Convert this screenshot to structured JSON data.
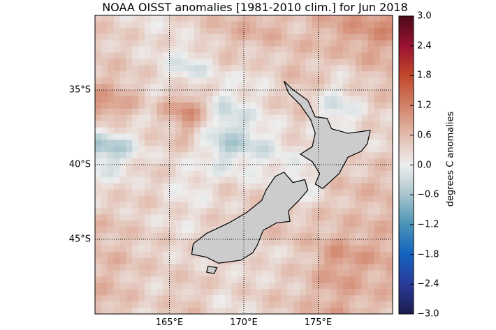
{
  "title": "NOAA OISST anomalies [1981-2010 clim.] for Jun 2018",
  "chart_data": {
    "type": "heatmap",
    "title": "NOAA OISST anomalies [1981-2010 clim.] for Jun 2018",
    "lon_range": [
      160,
      180
    ],
    "lat_range": [
      -50,
      -30
    ],
    "x_ticks": [
      {
        "value": 165,
        "label": "165°E"
      },
      {
        "value": 170,
        "label": "170°E"
      },
      {
        "value": 175,
        "label": "175°E"
      }
    ],
    "y_ticks": [
      {
        "value": -35,
        "label": "35°S"
      },
      {
        "value": -40,
        "label": "40°S"
      },
      {
        "value": -45,
        "label": "45°S"
      }
    ],
    "grid": true,
    "colorbar": {
      "label": "degrees C anomalies",
      "range": [
        -3.0,
        3.0
      ],
      "ticks": [
        "3.0",
        "2.4",
        "1.8",
        "1.2",
        "0.6",
        "0.0",
        "−0.6",
        "−1.2",
        "−1.8",
        "−2.4",
        "−3.0"
      ],
      "stops": [
        {
          "v": -3.0,
          "c": "#1b1b4e"
        },
        {
          "v": -2.4,
          "c": "#2a3a98"
        },
        {
          "v": -1.8,
          "c": "#1462c0"
        },
        {
          "v": -1.2,
          "c": "#4a94b6"
        },
        {
          "v": -0.6,
          "c": "#a9c5cd"
        },
        {
          "v": 0.0,
          "c": "#eeeeee"
        },
        {
          "v": 0.6,
          "c": "#e2bcae"
        },
        {
          "v": 1.2,
          "c": "#d18268"
        },
        {
          "v": 1.8,
          "c": "#c0482a"
        },
        {
          "v": 2.4,
          "c": "#9a1232"
        },
        {
          "v": 3.0,
          "c": "#4a0a18"
        }
      ]
    },
    "approx_anomaly_grid_note": "rows 30S to 50S in 2.5 deg steps, cols 160E to 180E",
    "anomaly_grid": [
      [
        0.4,
        0.2,
        0.3,
        0.6,
        0.7,
        0.5,
        0.8,
        1.0
      ],
      [
        0.5,
        0.3,
        -0.3,
        0.3,
        0.2,
        0.6,
        0.3,
        0.6
      ],
      [
        1.0,
        0.3,
        1.2,
        -0.3,
        0.2,
        0.5,
        -0.3,
        0.4
      ],
      [
        -0.6,
        0.3,
        0.4,
        -0.5,
        -0.2,
        0.3,
        0.2,
        0.3
      ],
      [
        0.2,
        0.4,
        0.0,
        0.3,
        0.2,
        -0.2,
        0.5,
        0.6
      ],
      [
        0.5,
        0.3,
        0.2,
        0.4,
        0.6,
        0.5,
        0.5,
        0.6
      ],
      [
        0.6,
        0.4,
        0.3,
        0.4,
        0.2,
        0.4,
        1.0,
        0.8
      ],
      [
        0.6,
        0.3,
        0.5,
        0.2,
        0.4,
        0.5,
        0.8,
        0.6
      ]
    ],
    "land_color": "#cccccc",
    "land": [
      {
        "name": "North Island",
        "coords": [
          [
            172.7,
            -34.4
          ],
          [
            173.2,
            -34.9
          ],
          [
            174.3,
            -35.7
          ],
          [
            174.8,
            -36.8
          ],
          [
            175.6,
            -36.9
          ],
          [
            175.9,
            -37.6
          ],
          [
            177.0,
            -37.9
          ],
          [
            178.5,
            -37.7
          ],
          [
            178.3,
            -38.6
          ],
          [
            177.9,
            -39.1
          ],
          [
            177.0,
            -39.5
          ],
          [
            176.4,
            -40.6
          ],
          [
            175.3,
            -41.6
          ],
          [
            174.8,
            -41.3
          ],
          [
            175.1,
            -40.6
          ],
          [
            174.6,
            -39.8
          ],
          [
            173.8,
            -39.3
          ],
          [
            174.6,
            -38.8
          ],
          [
            174.8,
            -37.9
          ],
          [
            174.5,
            -37.0
          ],
          [
            173.8,
            -36.0
          ],
          [
            173.0,
            -35.2
          ]
        ]
      },
      {
        "name": "South Island",
        "coords": [
          [
            172.7,
            -40.5
          ],
          [
            173.3,
            -41.2
          ],
          [
            174.1,
            -41.0
          ],
          [
            174.3,
            -41.7
          ],
          [
            173.7,
            -42.4
          ],
          [
            173.0,
            -43.1
          ],
          [
            173.1,
            -43.8
          ],
          [
            172.2,
            -43.9
          ],
          [
            171.3,
            -44.4
          ],
          [
            170.9,
            -45.4
          ],
          [
            170.6,
            -45.9
          ],
          [
            169.8,
            -46.4
          ],
          [
            168.3,
            -46.6
          ],
          [
            167.5,
            -46.2
          ],
          [
            166.5,
            -46.0
          ],
          [
            166.6,
            -45.3
          ],
          [
            167.5,
            -44.6
          ],
          [
            169.0,
            -43.9
          ],
          [
            170.2,
            -43.2
          ],
          [
            171.2,
            -42.4
          ],
          [
            171.5,
            -41.7
          ],
          [
            172.1,
            -40.8
          ]
        ]
      },
      {
        "name": "Stewart Island",
        "coords": [
          [
            167.6,
            -46.8
          ],
          [
            168.2,
            -46.9
          ],
          [
            168.0,
            -47.3
          ],
          [
            167.5,
            -47.2
          ]
        ]
      }
    ]
  }
}
